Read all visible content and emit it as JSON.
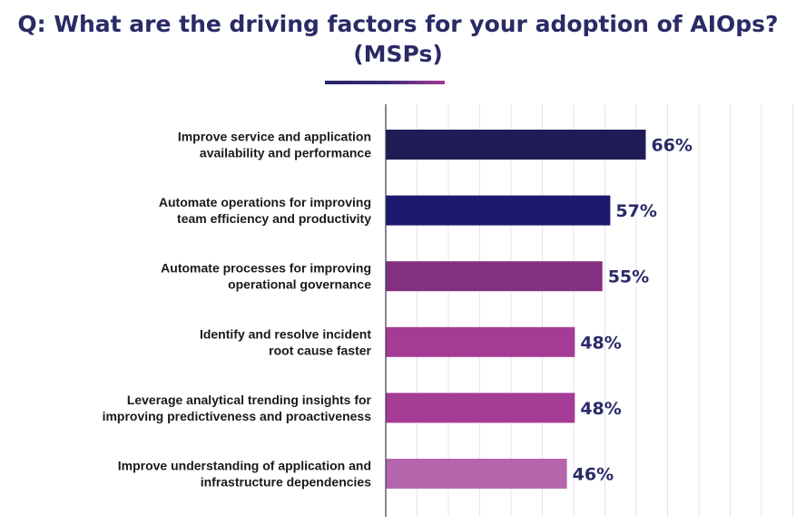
{
  "chart_data": {
    "type": "bar",
    "orientation": "horizontal",
    "title_lines": [
      "Q: What are the driving factors for your adoption of AIOps?",
      "(MSPs)"
    ],
    "categories": [
      [
        "Improve service and application",
        "availability and performance"
      ],
      [
        "Automate operations for improving",
        "team efficiency and productivity"
      ],
      [
        "Automate processes for improving",
        "operational governance"
      ],
      [
        "Identify and resolve incident",
        "root cause faster"
      ],
      [
        "Leverage analytical trending insights for",
        "improving predictiveness and proactiveness"
      ],
      [
        "Improve understanding of application and",
        "infrastructure dependencies"
      ]
    ],
    "values": [
      66,
      57,
      55,
      48,
      48,
      46
    ],
    "value_labels": [
      "66%",
      "57%",
      "55%",
      "48%",
      "48%",
      "46%"
    ],
    "bar_colors": [
      "#201c55",
      "#1b1a6e",
      "#843080",
      "#a43b95",
      "#a43b95",
      "#b565ac"
    ],
    "xlim": [
      0,
      100
    ],
    "grid": true,
    "legend": "none"
  },
  "colors": {
    "title": "#2a2a66",
    "label_text": "#1a1a1a",
    "value_text": "#2a2a66",
    "grid": "#e4e4ec",
    "axis": "#3a3a55"
  }
}
